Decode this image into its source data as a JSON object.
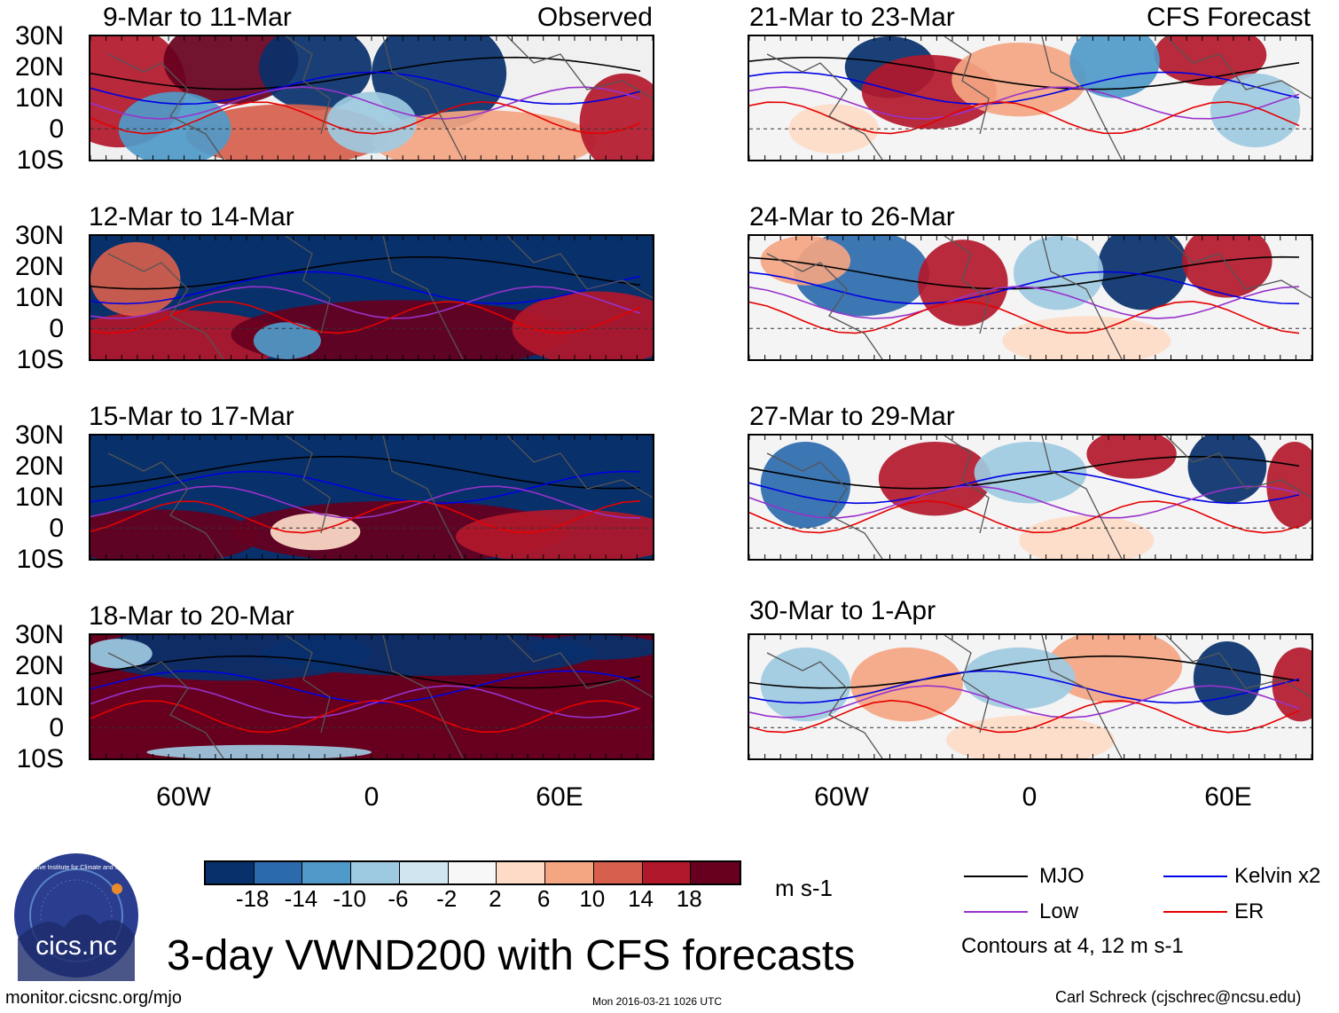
{
  "panels_left": [
    {
      "title": "9-Mar to 11-Mar",
      "label": "Observed",
      "style": "obs1"
    },
    {
      "title": "12-Mar to 14-Mar",
      "label": "",
      "style": "obs2"
    },
    {
      "title": "15-Mar to 17-Mar",
      "label": "",
      "style": "obs3"
    },
    {
      "title": "18-Mar to 20-Mar",
      "label": "",
      "style": "obs4"
    }
  ],
  "panels_right": [
    {
      "title": "21-Mar to 23-Mar",
      "label": "CFS Forecast",
      "style": "fc1"
    },
    {
      "title": "24-Mar to 26-Mar",
      "label": "",
      "style": "fc2"
    },
    {
      "title": "27-Mar to 29-Mar",
      "label": "",
      "style": "fc3"
    },
    {
      "title": "30-Mar to 1-Apr",
      "label": "",
      "style": "fc4"
    }
  ],
  "lat_labels": [
    "30N",
    "20N",
    "10N",
    "0",
    "10S"
  ],
  "lon_labels": [
    "60W",
    "0",
    "60E"
  ],
  "colorbar": {
    "colors": [
      "#08306b",
      "#2b6aad",
      "#4f9ac9",
      "#9ecae1",
      "#d1e5f0",
      "#f7f7f7",
      "#fddbc7",
      "#f4a582",
      "#d6604d",
      "#b2182b",
      "#67001f"
    ],
    "ticks": [
      "-18",
      "-14",
      "-10",
      "-6",
      "-2",
      "2",
      "6",
      "10",
      "14",
      "18"
    ],
    "units": "m s-1"
  },
  "legend": {
    "items": [
      {
        "label": "MJO",
        "color": "#000000"
      },
      {
        "label": "Kelvin x2",
        "color": "#0000e6"
      },
      {
        "label": "Low",
        "color": "#9932cc"
      },
      {
        "label": "ER",
        "color": "#e60000"
      }
    ],
    "note": "Contours at 4, 12 m s-1"
  },
  "title": "3-day VWND200 with CFS forecasts",
  "logo": {
    "text": "cics.nc",
    "ring_text": "Cooperative Institute for Climate and Satellites",
    "colors": {
      "bg": "#2a3d8f",
      "ring": "#ffffff"
    }
  },
  "footer": {
    "left": "monitor.cicsnc.org/mjo",
    "center": "Mon 2016-03-21 1026 UTC",
    "right": "Carl Schreck (cjschrec@ncsu.edu)"
  }
}
